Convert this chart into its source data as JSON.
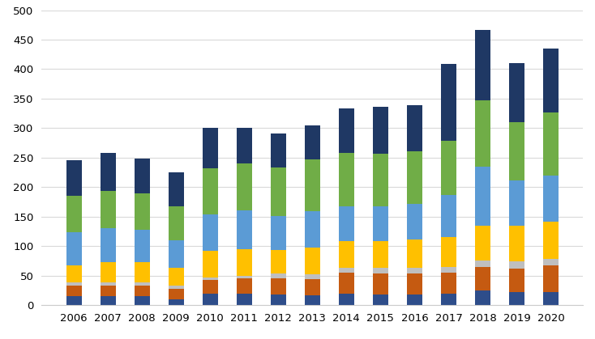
{
  "years": [
    2006,
    2007,
    2008,
    2009,
    2010,
    2011,
    2012,
    2013,
    2014,
    2015,
    2016,
    2017,
    2018,
    2019,
    2020
  ],
  "segments": {
    "s1_dark_blue": [
      15,
      15,
      15,
      10,
      20,
      20,
      18,
      17,
      20,
      18,
      18,
      20,
      25,
      22,
      22
    ],
    "s2_orange": [
      18,
      18,
      18,
      18,
      22,
      25,
      27,
      27,
      35,
      35,
      35,
      35,
      40,
      40,
      45
    ],
    "s3_gray": [
      5,
      5,
      5,
      5,
      5,
      5,
      8,
      8,
      8,
      10,
      10,
      10,
      10,
      12,
      12
    ],
    "s4_yellow": [
      30,
      35,
      35,
      30,
      45,
      45,
      40,
      45,
      45,
      45,
      48,
      50,
      60,
      60,
      62
    ],
    "s5_light_blue": [
      55,
      58,
      55,
      47,
      62,
      65,
      58,
      62,
      60,
      60,
      60,
      72,
      100,
      78,
      78
    ],
    "s6_green": [
      62,
      62,
      62,
      58,
      78,
      80,
      82,
      88,
      90,
      88,
      90,
      92,
      112,
      98,
      108
    ],
    "s7_dark_navy": [
      60,
      65,
      58,
      57,
      68,
      60,
      58,
      58,
      75,
      80,
      78,
      130,
      120,
      100,
      108
    ]
  },
  "colors": {
    "s1_dark_blue": "#2e4d8a",
    "s2_orange": "#c55a11",
    "s3_gray": "#bfbfbf",
    "s4_yellow": "#ffc000",
    "s5_light_blue": "#5b9bd5",
    "s6_green": "#70ad47",
    "s7_dark_navy": "#1f3864"
  },
  "ylim": [
    0,
    500
  ],
  "yticks": [
    0,
    50,
    100,
    150,
    200,
    250,
    300,
    350,
    400,
    450,
    500
  ],
  "bar_width": 0.45,
  "background_color": "#ffffff",
  "grid_color": "#d9d9d9"
}
